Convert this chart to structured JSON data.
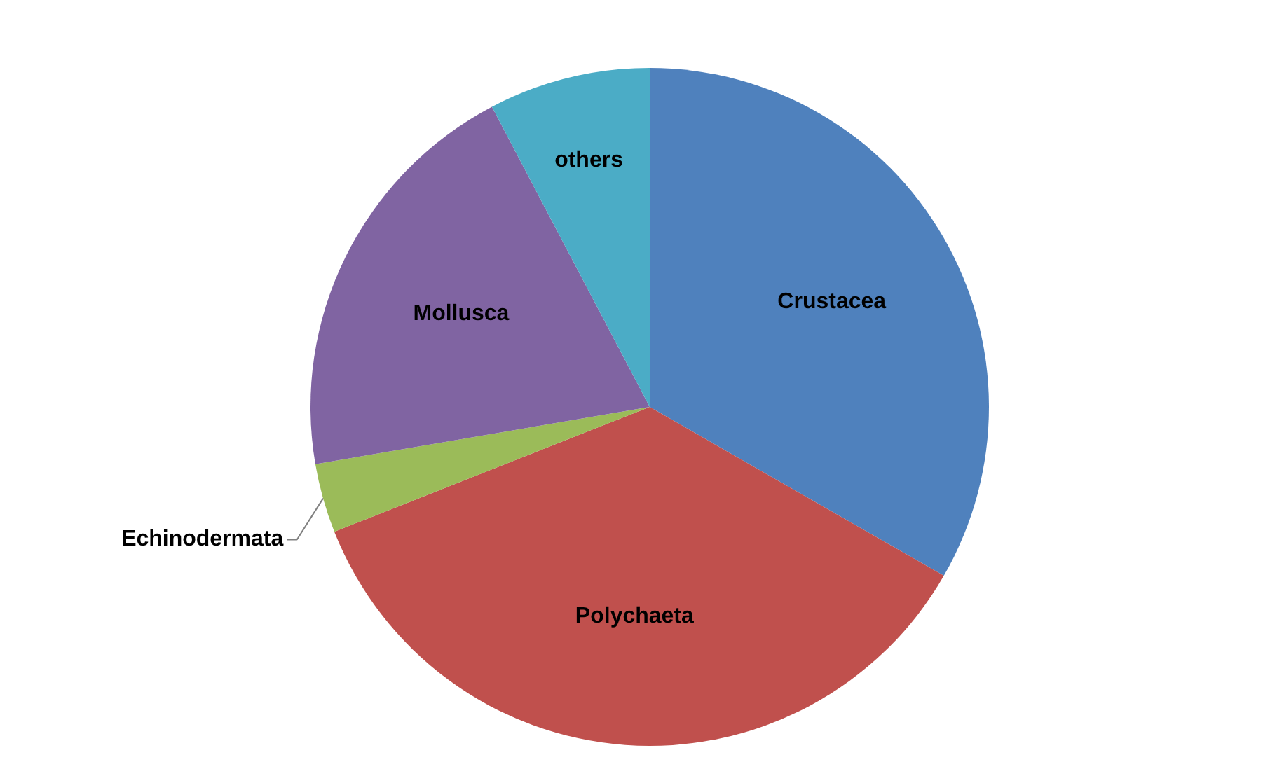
{
  "chart_data": {
    "type": "pie",
    "categories": [
      "Crustacea",
      "Polychaeta",
      "Echinodermata",
      "Mollusca",
      "others"
    ],
    "values": [
      33.3,
      35.7,
      3.3,
      20.0,
      7.7
    ],
    "colors": [
      "#4f81bd",
      "#c0504d",
      "#9bbb59",
      "#8064a2",
      "#4bacc6"
    ]
  }
}
